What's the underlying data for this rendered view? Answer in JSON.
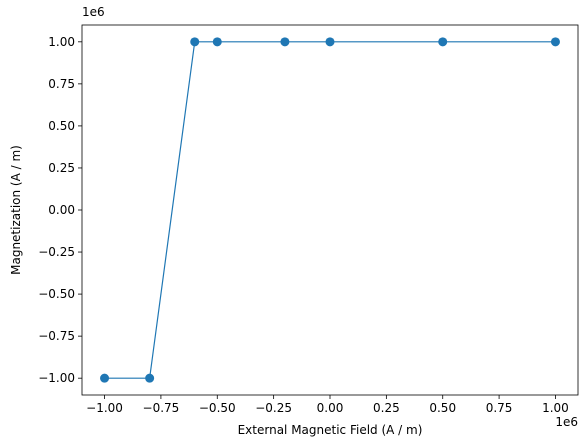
{
  "chart_data": {
    "type": "line",
    "x_label": "External Magnetic Field (A / m)",
    "y_label": "Magnetization (A / m)",
    "x_offset_text": "1e6",
    "y_offset_text": "1e6",
    "x": [
      -1000000,
      -800000,
      -600000,
      -500000,
      -200000,
      0,
      500000,
      1000000
    ],
    "series": [
      {
        "color": "#1f77b4",
        "values": [
          -1000000,
          -1000000,
          1000000,
          1000000,
          1000000,
          1000000,
          1000000,
          1000000
        ]
      }
    ],
    "xlim": [
      -1100000,
      1100000
    ],
    "ylim": [
      -1100000,
      1100000
    ],
    "xticks": [
      {
        "value": -1000000,
        "label": "−1.00"
      },
      {
        "value": -750000,
        "label": "−0.75"
      },
      {
        "value": -500000,
        "label": "−0.50"
      },
      {
        "value": -250000,
        "label": "−0.25"
      },
      {
        "value": 0,
        "label": "0.00"
      },
      {
        "value": 250000,
        "label": "0.25"
      },
      {
        "value": 500000,
        "label": "0.50"
      },
      {
        "value": 750000,
        "label": "0.75"
      },
      {
        "value": 1000000,
        "label": "1.00"
      }
    ],
    "yticks": [
      {
        "value": -1000000,
        "label": "−1.00"
      },
      {
        "value": -750000,
        "label": "−0.75"
      },
      {
        "value": -500000,
        "label": "−0.50"
      },
      {
        "value": -250000,
        "label": "−0.25"
      },
      {
        "value": 0,
        "label": "0.00"
      },
      {
        "value": 250000,
        "label": "0.25"
      },
      {
        "value": 500000,
        "label": "0.50"
      },
      {
        "value": 750000,
        "label": "0.75"
      },
      {
        "value": 1000000,
        "label": "1.00"
      }
    ],
    "grid": false,
    "markers": true
  }
}
